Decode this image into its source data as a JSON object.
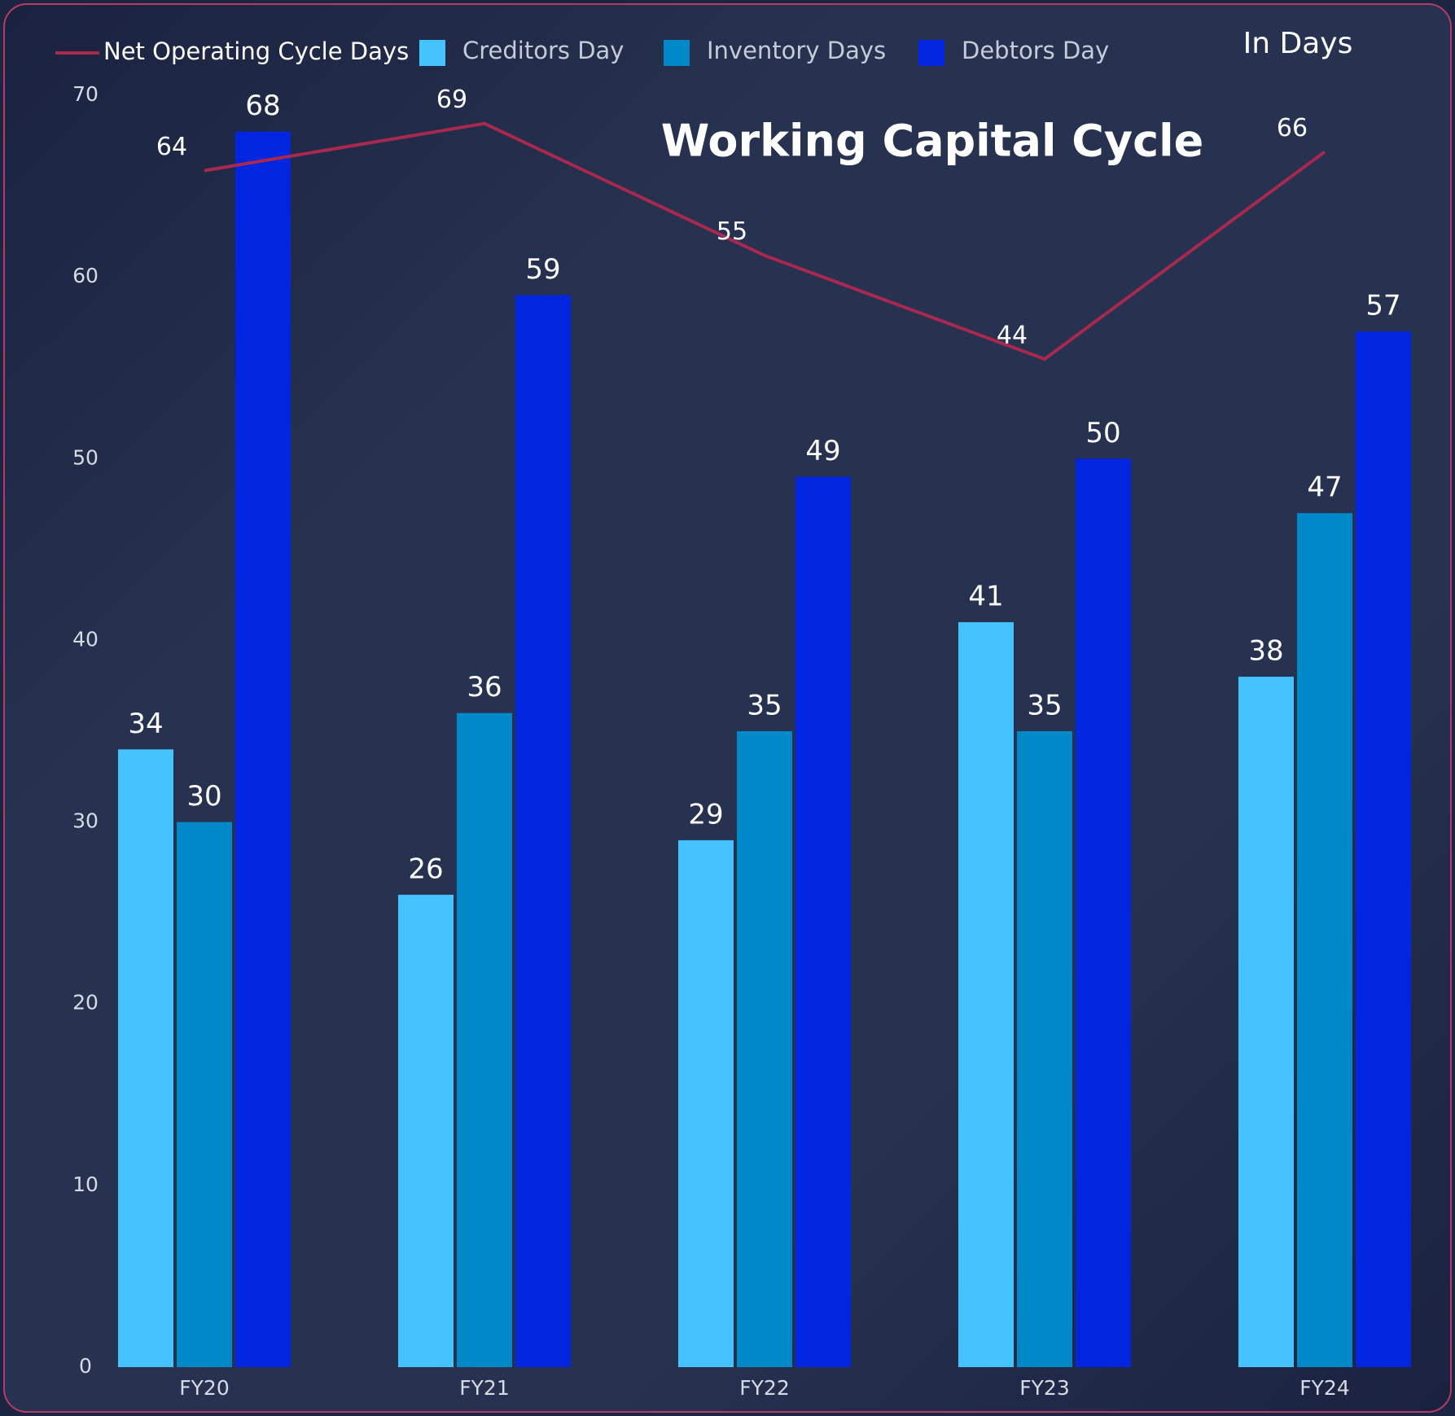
{
  "chart_data": {
    "type": "bar",
    "title": "Working Capital Cycle",
    "annotations": [
      "In Days"
    ],
    "categories": [
      "FY20",
      "FY21",
      "FY22",
      "FY23",
      "FY24"
    ],
    "series": [
      {
        "name": "Net Operating Cycle Days",
        "type": "line",
        "axis": "y2",
        "color": "#a8284f",
        "values": [
          64,
          69,
          55,
          44,
          66
        ]
      },
      {
        "name": "Creditors Day",
        "color": "#45c3ff",
        "values": [
          34,
          26,
          29,
          41,
          38
        ]
      },
      {
        "name": "Inventory Days",
        "color": "#0088c8",
        "values": [
          30,
          36,
          35,
          35,
          47
        ]
      },
      {
        "name": "Debtors Day",
        "color": "#0226e0",
        "values": [
          68,
          59,
          49,
          50,
          57
        ]
      }
    ],
    "ylim": [
      0,
      70
    ],
    "yticks": [
      0,
      10,
      20,
      30,
      40,
      50,
      60,
      70
    ],
    "y2lim": [
      -63,
      72
    ],
    "legend": "top",
    "grid": false
  }
}
